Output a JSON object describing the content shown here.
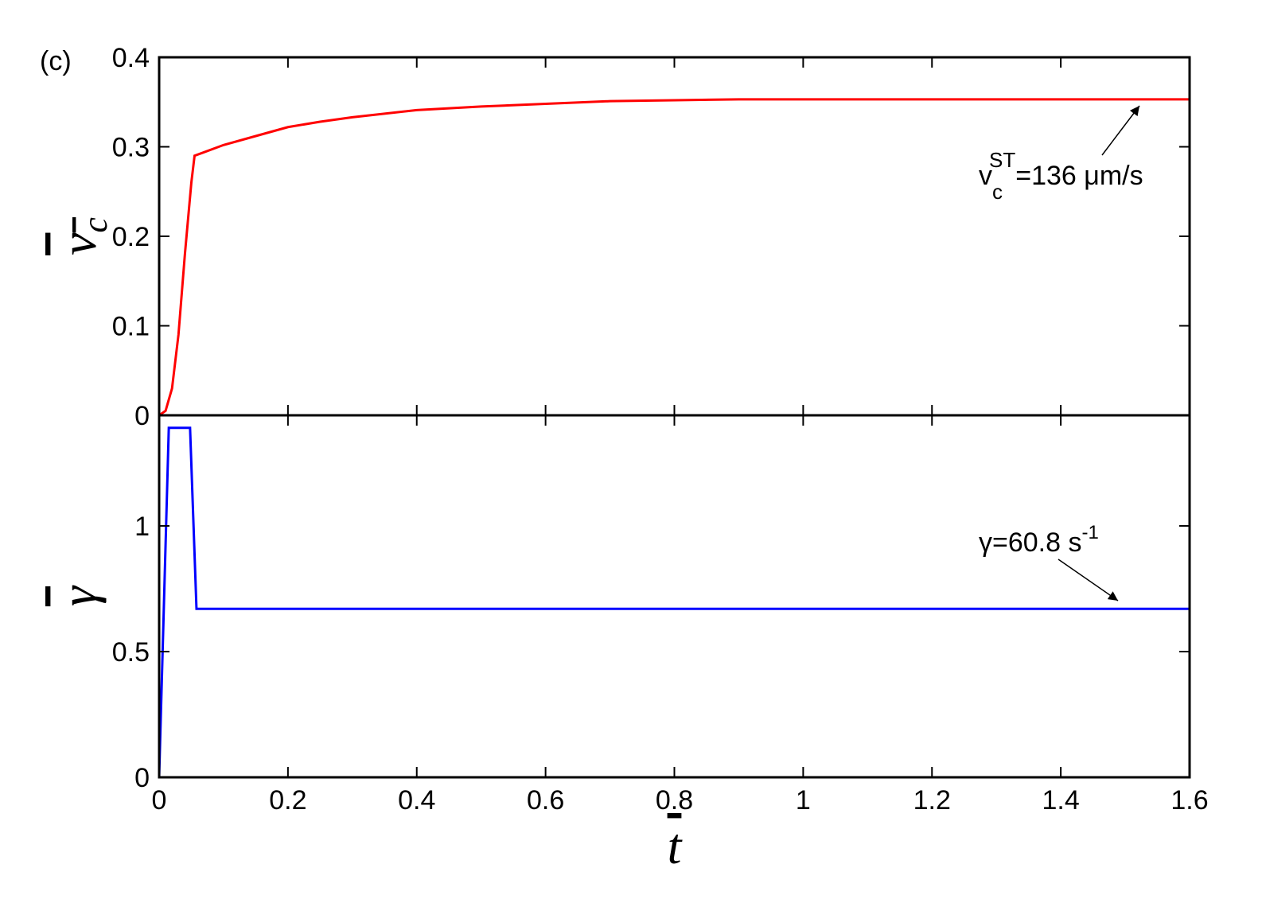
{
  "chart_data": [
    {
      "type": "line",
      "panel_label": "(c)",
      "ylabel": "v",
      "ylabel_sub": "c",
      "xlim": [
        0,
        1.6
      ],
      "xticks": [
        0,
        0.2,
        0.4,
        0.6,
        0.8,
        1,
        1.2,
        1.4,
        1.6
      ],
      "ylim": [
        0,
        0.4
      ],
      "yticks": [
        0,
        0.1,
        0.2,
        0.3,
        0.4
      ],
      "series": [
        {
          "color": "#ff0000",
          "x": [
            0,
            0.01,
            0.02,
            0.03,
            0.04,
            0.05,
            0.055,
            0.1,
            0.15,
            0.2,
            0.25,
            0.3,
            0.4,
            0.5,
            0.6,
            0.7,
            0.8,
            0.9,
            1.0,
            1.2,
            1.4,
            1.6
          ],
          "values": [
            0,
            0.005,
            0.03,
            0.09,
            0.18,
            0.26,
            0.29,
            0.302,
            0.312,
            0.322,
            0.328,
            0.333,
            0.341,
            0.345,
            0.348,
            0.351,
            0.352,
            0.353,
            0.353,
            0.353,
            0.353,
            0.353
          ]
        }
      ],
      "annotation": {
        "base": "v",
        "sub": "c",
        "sup": "ST",
        "rest": "=136 μm/s"
      }
    },
    {
      "type": "line",
      "ylabel": "γ",
      "xlabel": "t",
      "xlim": [
        0,
        1.6
      ],
      "xticks": [
        0,
        0.2,
        0.4,
        0.6,
        0.8,
        1,
        1.2,
        1.4,
        1.6
      ],
      "ylim": [
        0,
        1.44
      ],
      "yticks": [
        0,
        0.5,
        1
      ],
      "series": [
        {
          "color": "#0000ff",
          "x": [
            0,
            0.015,
            0.048,
            0.058,
            1.6
          ],
          "values": [
            0,
            1.39,
            1.39,
            0.67,
            0.67
          ]
        }
      ],
      "annotation": {
        "base": "γ=60.8 s",
        "sup": "-1"
      }
    }
  ]
}
